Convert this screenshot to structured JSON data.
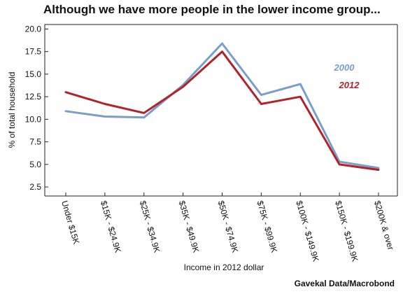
{
  "chart_data": {
    "type": "line",
    "title": "Although we have more people in the lower income group...",
    "xlabel": "Income in 2012 dollar",
    "ylabel": "% of total household",
    "categories": [
      "Under $15K",
      "$15K - $24.9K",
      "$25K - $34.9K",
      "$35K - $49.9K",
      "$50K - $74.9K",
      "$75K - $99.9K",
      "$100K - $149.9K",
      "$150K - $199.9K",
      "$200K & over"
    ],
    "ylim": [
      1.5,
      20.5
    ],
    "yticks": [
      2.5,
      5.0,
      7.5,
      10.0,
      12.5,
      15.0,
      17.5,
      20.0
    ],
    "ytick_labels": [
      "2.5",
      "5.0",
      "7.5",
      "10.0",
      "12.5",
      "15.0",
      "17.5",
      "20.0"
    ],
    "grid": false,
    "legend_placement": "right, inline labels",
    "series": [
      {
        "name": "2000",
        "color": "#7a9ecb",
        "values": [
          10.9,
          10.3,
          10.2,
          13.8,
          18.4,
          12.7,
          13.9,
          5.3,
          4.6
        ]
      },
      {
        "name": "2012",
        "color": "#b3222b",
        "values": [
          13.0,
          11.7,
          10.7,
          13.6,
          17.5,
          11.7,
          12.5,
          5.0,
          4.4
        ]
      }
    ]
  },
  "source": "Gavekal Data/Macrobond"
}
